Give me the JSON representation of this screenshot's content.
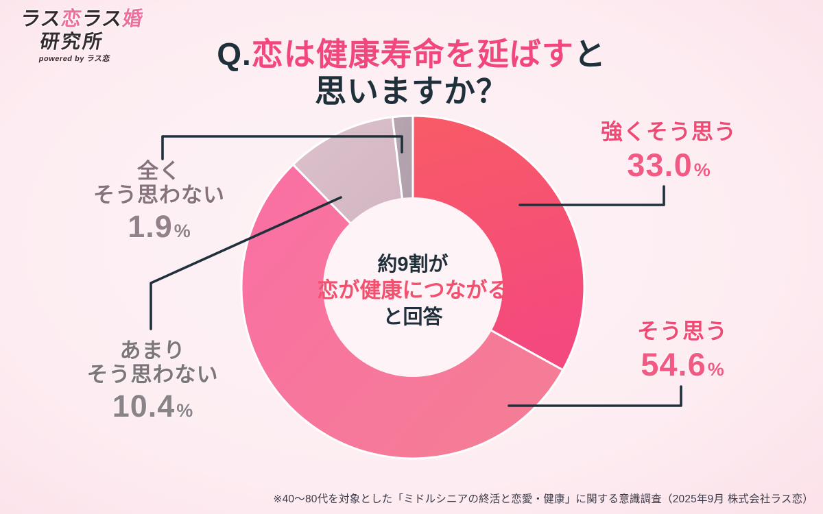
{
  "logo": {
    "part1": "ラス",
    "part2": "恋",
    "part3": "ラス",
    "part4": "婚",
    "line2": "研究所",
    "powered": "powered by ラス恋"
  },
  "title": {
    "prefix": "Q.",
    "highlight": "恋は健康寿命を延ばす",
    "suffix": "と",
    "line2": "思いますか？"
  },
  "center": {
    "line1": "約9割が",
    "line2": "恋が健康につながる",
    "line3": "と回答"
  },
  "callouts": [
    {
      "id": "strongly-agree",
      "lines": [
        "強くそう思う"
      ],
      "value": "33.0",
      "unit": "%",
      "color": "#ee4a74",
      "value_color": "#f15a82"
    },
    {
      "id": "agree",
      "lines": [
        "そう思う"
      ],
      "value": "54.6",
      "unit": "%",
      "color": "#ee4a74",
      "value_color": "#f15a82"
    },
    {
      "id": "rarely-disagree",
      "lines": [
        "あまり",
        "そう思わない"
      ],
      "value": "10.4",
      "unit": "%",
      "color": "#7c767b",
      "value_color": "#8a8489"
    },
    {
      "id": "never-disagree",
      "lines": [
        "全く",
        "そう思わない"
      ],
      "value": "1.9",
      "unit": "%",
      "color": "#87727c",
      "value_color": "#93808a"
    }
  ],
  "chart_data": {
    "type": "pie",
    "subtype": "donut",
    "title": "Q.恋は健康寿命を延ばすと思いますか？",
    "categories": [
      "強くそう思う",
      "そう思う",
      "あまりそう思わない",
      "全くそう思わない"
    ],
    "values": [
      33.0,
      54.6,
      10.4,
      1.9
    ],
    "unit": "%",
    "start_angle": "top",
    "direction": "clockwise",
    "segment_gradients": [
      [
        "#f85b66",
        "#f4497e"
      ],
      [
        "#fa6fa4",
        "#f47d95"
      ],
      [
        "#dcc2cc",
        "#d2b5c2"
      ],
      [
        "#b6a5b0",
        "#b0a0ab"
      ]
    ],
    "stroke_color": "#ffffff",
    "hole_color": "#fef3f6",
    "center_label": "約9割が 恋が健康につながる と回答",
    "legend_position": "none"
  },
  "footnote": "※40〜80代を対象とした「ミドルシニアの終活と恋愛・健康」に関する意識調査（2025年9月 株式会社ラス恋）",
  "colors": {
    "accent_pink": "#f1477c",
    "dark_ink": "#20303a",
    "leader_line": "#20303a"
  }
}
